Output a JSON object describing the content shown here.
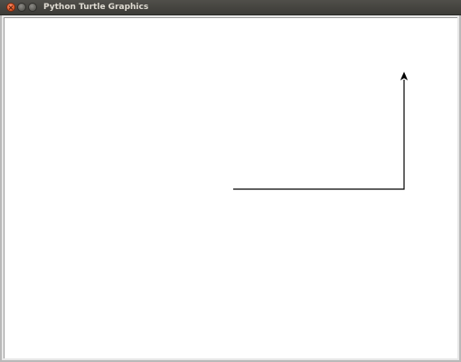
{
  "window": {
    "title": "Python Turtle Graphics",
    "close_symbol": "×"
  },
  "icons": {
    "close": "close-icon",
    "minimize": "minimize-icon",
    "maximize": "maximize-icon",
    "turtle_cursor": "arrow-icon"
  },
  "colors": {
    "pen": "#000000",
    "canvas_background": "#ffffff"
  }
}
